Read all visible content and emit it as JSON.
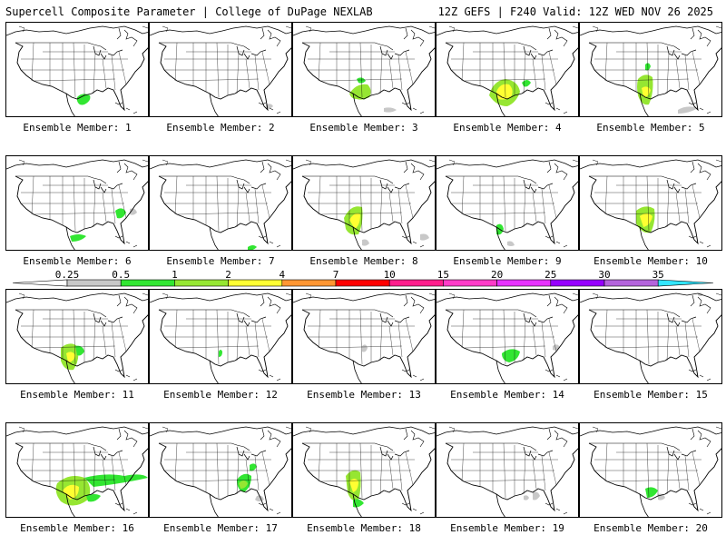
{
  "header": {
    "left": "Supercell Composite Parameter | College of DuPage NEXLAB",
    "right": "12Z GEFS | F240 Valid: 12Z WED NOV 26 2025"
  },
  "legend": {
    "ticks": [
      "0.25",
      "0.5",
      "1",
      "2",
      "4",
      "7",
      "10",
      "15",
      "20",
      "25",
      "30",
      "35"
    ],
    "colors": [
      "#c8c8c8",
      "#32e632",
      "#96e632",
      "#ffff32",
      "#ff9632",
      "#ff0000",
      "#ff1e8c",
      "#ff3cc8",
      "#e632ff",
      "#9600ff",
      "#b464dc",
      "#32e6ff"
    ]
  },
  "panels": [
    {
      "caption": "Ensemble Member: 1"
    },
    {
      "caption": "Ensemble Member: 2"
    },
    {
      "caption": "Ensemble Member: 3"
    },
    {
      "caption": "Ensemble Member: 4"
    },
    {
      "caption": "Ensemble Member: 5"
    },
    {
      "caption": "Ensemble Member: 6"
    },
    {
      "caption": "Ensemble Member: 7"
    },
    {
      "caption": "Ensemble Member: 8"
    },
    {
      "caption": "Ensemble Member: 9"
    },
    {
      "caption": "Ensemble Member: 10"
    },
    {
      "caption": "Ensemble Member: 11"
    },
    {
      "caption": "Ensemble Member: 12"
    },
    {
      "caption": "Ensemble Member: 13"
    },
    {
      "caption": "Ensemble Member: 14"
    },
    {
      "caption": "Ensemble Member: 15"
    },
    {
      "caption": "Ensemble Member: 16"
    },
    {
      "caption": "Ensemble Member: 17"
    },
    {
      "caption": "Ensemble Member: 18"
    },
    {
      "caption": "Ensemble Member: 19"
    },
    {
      "caption": "Ensemble Member: 20"
    }
  ]
}
